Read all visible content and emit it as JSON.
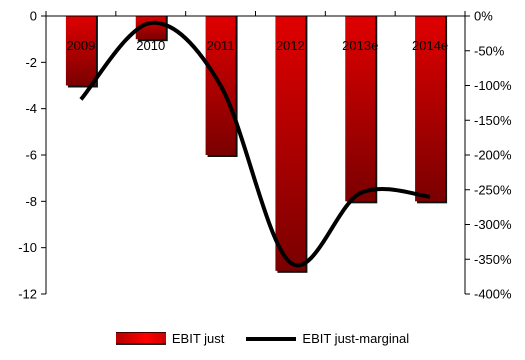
{
  "chart_data": {
    "type": "bar",
    "categories": [
      "2009",
      "2010",
      "2011",
      "2012",
      "2013e",
      "2014e"
    ],
    "series": [
      {
        "name": "EBIT just",
        "type": "bar",
        "axis": "left",
        "values": [
          -3,
          -1,
          -6,
          -11,
          -8,
          -8
        ]
      },
      {
        "name": "EBIT just-marginal",
        "type": "line",
        "axis": "right",
        "smooth": true,
        "values": [
          -120,
          -10,
          -100,
          -355,
          -255,
          -260
        ]
      }
    ],
    "y_left": {
      "ticks": [
        "0",
        "-2",
        "-4",
        "-6",
        "-8",
        "-10",
        "-12"
      ],
      "ylim": [
        -12,
        0
      ]
    },
    "y_right": {
      "ticks": [
        "0%",
        "-50%",
        "-100%",
        "-150%",
        "-200%",
        "-250%",
        "-300%",
        "-350%",
        "-400%"
      ],
      "ylim": [
        -400,
        0
      ]
    },
    "grid": false,
    "legend_position": "bottom",
    "colors": {
      "bar": "#e00000",
      "bar_dark": "#7a0000",
      "line": "#000000"
    }
  }
}
